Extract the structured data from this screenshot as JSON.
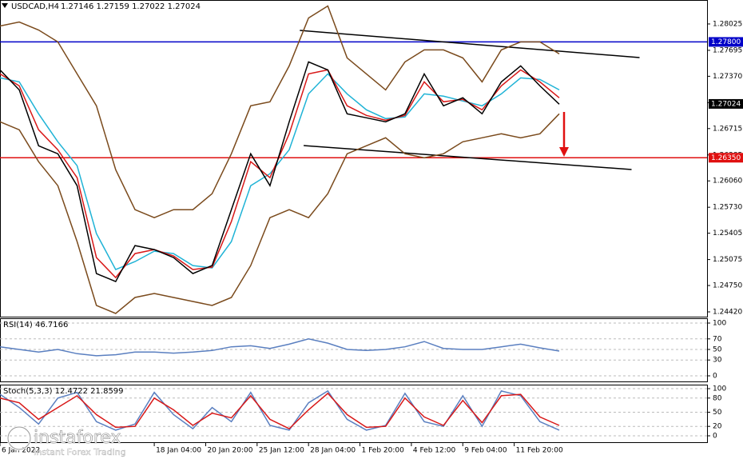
{
  "watermark": {
    "brand": "instaforex",
    "slogan": "Instant Forex Trading"
  },
  "chart_data": [
    {
      "type": "line",
      "title": "USDCAD,H4",
      "quote": "1.27146 1.27159 1.27022 1.27024",
      "x": [
        0,
        6,
        12,
        18,
        24,
        30,
        36,
        42,
        48,
        54,
        60,
        66,
        72,
        78,
        84,
        90,
        96,
        102,
        108,
        114,
        120,
        126,
        132,
        138,
        144,
        150,
        156,
        162,
        168,
        174
      ],
      "series": [
        {
          "color": "#7a4a1c",
          "values": [
            1.28,
            1.2805,
            1.2795,
            1.278,
            1.274,
            1.27,
            1.262,
            1.257,
            1.256,
            1.257,
            1.257,
            1.259,
            1.264,
            1.27,
            1.2705,
            1.275,
            1.281,
            1.2825,
            1.276,
            1.274,
            1.272,
            1.2755,
            1.277,
            1.277,
            1.276,
            1.273,
            1.277,
            1.278,
            1.278,
            1.2765
          ]
        },
        {
          "color": "#7a4a1c",
          "values": [
            1.268,
            1.267,
            1.263,
            1.26,
            1.253,
            1.245,
            1.244,
            1.246,
            1.2465,
            1.246,
            1.2455,
            1.245,
            1.246,
            1.25,
            1.256,
            1.257,
            1.256,
            1.259,
            1.264,
            1.265,
            1.266,
            1.264,
            1.2635,
            1.264,
            1.2655,
            1.266,
            1.2665,
            1.266,
            1.2665,
            1.269
          ]
        },
        {
          "color": "#1fb3d6",
          "values": [
            1.2735,
            1.273,
            1.269,
            1.2655,
            1.2625,
            1.254,
            1.2495,
            1.2505,
            1.2518,
            1.2515,
            1.25,
            1.2497,
            1.253,
            1.26,
            1.2615,
            1.2645,
            1.2715,
            1.274,
            1.2715,
            1.2695,
            1.2684,
            1.2686,
            1.2715,
            1.2712,
            1.2706,
            1.27,
            1.2715,
            1.2735,
            1.2733,
            1.272
          ]
        },
        {
          "color": "#d81818",
          "values": [
            1.274,
            1.2725,
            1.267,
            1.2645,
            1.261,
            1.251,
            1.2485,
            1.2515,
            1.252,
            1.2512,
            1.2495,
            1.2498,
            1.2555,
            1.263,
            1.261,
            1.2665,
            1.274,
            1.2745,
            1.27,
            1.2688,
            1.2682,
            1.2688,
            1.273,
            1.2705,
            1.2708,
            1.2695,
            1.2725,
            1.2745,
            1.273,
            1.271
          ]
        },
        {
          "color": "#000000",
          "values": [
            1.2745,
            1.272,
            1.265,
            1.264,
            1.26,
            1.249,
            1.248,
            1.2525,
            1.252,
            1.251,
            1.249,
            1.25,
            1.257,
            1.264,
            1.26,
            1.268,
            1.2755,
            1.2745,
            1.269,
            1.2685,
            1.268,
            1.269,
            1.274,
            1.27,
            1.271,
            1.269,
            1.273,
            1.275,
            1.2725,
            1.2702
          ]
        }
      ],
      "xlim": [
        0,
        220
      ],
      "ylim": [
        1.2437,
        1.28305
      ],
      "xticks": [
        {
          "value": 0,
          "label": "6 Jan 2022"
        },
        {
          "value": 48,
          "label": "18 Jan 04:00"
        },
        {
          "value": 64,
          "label": "20 Jan 20:00"
        },
        {
          "value": 80,
          "label": "25 Jan 12:00"
        },
        {
          "value": 96,
          "label": "28 Jan 04:00"
        },
        {
          "value": 112,
          "label": "1 Feb 20:00"
        },
        {
          "value": 128,
          "label": "4 Feb 12:00"
        },
        {
          "value": 144,
          "label": "9 Feb 04:00"
        },
        {
          "value": 160,
          "label": "11 Feb 20:00"
        }
      ],
      "yticks": [
        1.28025,
        1.27695,
        {
          "value": 1.2737,
          "label": "1.27370"
        },
        {
          "value": 1.2704,
          "label": "1.27040"
        },
        1.26715,
        1.26385,
        {
          "value": 1.2606,
          "label": "1.26060"
        },
        {
          "value": 1.2573,
          "label": "1.25730"
        },
        1.25405,
        1.25075,
        {
          "value": 1.2475,
          "label": "1.24750"
        },
        {
          "value": 1.2442,
          "label": "1.24420"
        }
      ],
      "levels": [
        {
          "value": 1.278,
          "label": "1.27800",
          "color": "#0000c8"
        },
        {
          "value": 1.2635,
          "label": "1.26350",
          "color": "#e01010"
        }
      ],
      "last_price": 1.27024,
      "trendlines": [
        {
          "x": [
            93.3,
            199
          ],
          "values": [
            1.27945,
            1.27604
          ]
        },
        {
          "x": [
            94.5,
            196.5
          ],
          "values": [
            1.26503,
            1.26202
          ]
        }
      ],
      "grid": false
    },
    {
      "type": "line",
      "title": "RSI(14) 46.7166",
      "x": [
        0,
        6,
        12,
        18,
        24,
        30,
        36,
        42,
        48,
        54,
        60,
        66,
        72,
        78,
        84,
        90,
        96,
        102,
        108,
        114,
        120,
        126,
        132,
        138,
        144,
        150,
        156,
        162,
        168,
        174
      ],
      "series": [
        {
          "color": "#5a7fc0",
          "values": [
            55,
            50,
            45,
            50,
            42,
            38,
            40,
            45,
            45,
            43,
            45,
            48,
            55,
            57,
            52,
            60,
            70,
            62,
            50,
            48,
            50,
            55,
            65,
            52,
            50,
            50,
            55,
            60,
            53,
            47
          ]
        }
      ],
      "xlim": [
        0,
        220
      ],
      "ylim": [
        0,
        100
      ],
      "yticks": [
        100,
        70,
        50,
        30,
        0
      ],
      "grid": true
    },
    {
      "type": "line",
      "title": "Stoch(5,3,3) 12.4722 21.8599",
      "x": [
        0,
        6,
        12,
        18,
        24,
        30,
        36,
        42,
        48,
        54,
        60,
        66,
        72,
        78,
        84,
        90,
        96,
        102,
        108,
        114,
        120,
        126,
        132,
        138,
        144,
        150,
        156,
        162,
        168,
        174
      ],
      "series": [
        {
          "color": "#5a7fc0",
          "values": [
            88,
            60,
            25,
            80,
            92,
            30,
            12,
            25,
            92,
            45,
            15,
            60,
            30,
            92,
            22,
            12,
            70,
            95,
            35,
            12,
            22,
            90,
            30,
            20,
            85,
            20,
            95,
            85,
            30,
            12
          ]
        },
        {
          "color": "#d81818",
          "values": [
            80,
            70,
            35,
            60,
            85,
            45,
            18,
            20,
            80,
            55,
            22,
            48,
            38,
            85,
            35,
            15,
            55,
            90,
            45,
            18,
            20,
            80,
            40,
            22,
            75,
            28,
            85,
            88,
            40,
            22
          ]
        }
      ],
      "xlim": [
        0,
        220
      ],
      "ylim": [
        0,
        100
      ],
      "yticks": [
        100,
        80,
        50,
        20,
        0
      ],
      "grid": true
    }
  ]
}
